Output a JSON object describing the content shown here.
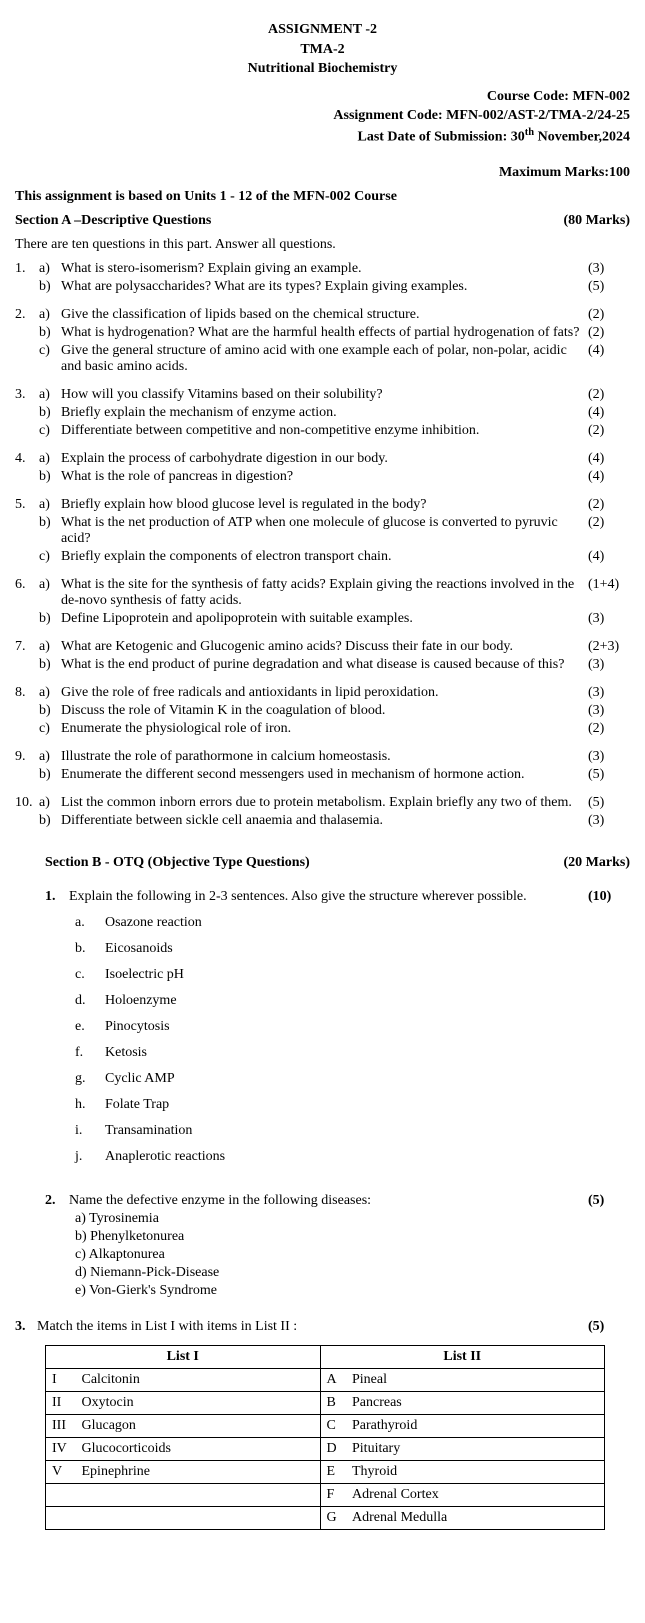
{
  "header": {
    "title1": "ASSIGNMENT -2",
    "title2": "TMA-2",
    "subject": "Nutritional Biochemistry",
    "course_code_label": "Course Code: MFN-002",
    "assignment_code_label": "Assignment Code: MFN-002/AST-2/TMA-2/24-25",
    "submission_prefix": "Last Date of Submission: 30",
    "submission_sup": "th",
    "submission_suffix": " November,2024",
    "max_marks": "Maximum Marks:100",
    "basis": "This assignment is based on Units 1 - 12 of the MFN-002 Course"
  },
  "sectionA": {
    "title": "Section A –Descriptive Questions",
    "marks": "(80 Marks)",
    "instruction": "There are ten questions in this part. Answer all questions.",
    "questions": [
      {
        "num": "1.",
        "parts": [
          {
            "sub": "a)",
            "text": "What is stero-isomerism? Explain giving an example.",
            "marks": "(3)"
          },
          {
            "sub": "b)",
            "text": "What are polysaccharides? What are its types? Explain giving examples.",
            "marks": "(5)"
          }
        ]
      },
      {
        "num": "2.",
        "parts": [
          {
            "sub": "a)",
            "text": "Give the classification of lipids based on the chemical structure.",
            "marks": "(2)"
          },
          {
            "sub": "b)",
            "text": "What is hydrogenation? What are the harmful health effects of partial hydrogenation of fats?",
            "marks": "(2)"
          },
          {
            "sub": "c)",
            "text": "Give the general structure of amino acid with one example each of polar, non-polar, acidic and basic amino acids.",
            "marks": "(4)"
          }
        ]
      },
      {
        "num": "3.",
        "parts": [
          {
            "sub": "a)",
            "text": "How will you classify Vitamins based on their solubility?",
            "marks": "(2)"
          },
          {
            "sub": "b)",
            "text": "Briefly explain the mechanism of enzyme action.",
            "marks": "(4)"
          },
          {
            "sub": "c)",
            "text": "Differentiate between competitive and non-competitive enzyme inhibition.",
            "marks": "(2)"
          }
        ]
      },
      {
        "num": "4.",
        "parts": [
          {
            "sub": "a)",
            "text": "Explain the process of carbohydrate digestion in our body.",
            "marks": "(4)"
          },
          {
            "sub": "b)",
            "text": "What is the role of pancreas in digestion?",
            "marks": "(4)"
          }
        ]
      },
      {
        "num": "5.",
        "parts": [
          {
            "sub": "a)",
            "text": "Briefly explain how blood glucose level is regulated in the body?",
            "marks": "(2)"
          },
          {
            "sub": "b)",
            "text": "What is the net production of ATP when one molecule of glucose is converted to pyruvic acid?",
            "marks": "(2)"
          },
          {
            "sub": "c)",
            "text": "Briefly explain the components of electron transport chain.",
            "marks": "(4)"
          }
        ]
      },
      {
        "num": "6.",
        "parts": [
          {
            "sub": "a)",
            "text": "What is the site for the synthesis of fatty acids? Explain giving the reactions involved in the de-novo synthesis of fatty acids.",
            "marks": "(1+4)"
          },
          {
            "sub": "b)",
            "text": "Define Lipoprotein and apolipoprotein with suitable examples.",
            "marks": "(3)"
          }
        ]
      },
      {
        "num": "7.",
        "parts": [
          {
            "sub": "a)",
            "text": "What are Ketogenic and Glucogenic amino acids? Discuss their fate in our body.",
            "marks": "(2+3)"
          },
          {
            "sub": "b)",
            "text": "What is the end product of purine degradation and what disease is caused because of this?",
            "marks": "(3)"
          }
        ]
      },
      {
        "num": "8.",
        "parts": [
          {
            "sub": "a)",
            "text": "Give the role of free radicals and antioxidants in lipid peroxidation.",
            "marks": "(3)"
          },
          {
            "sub": "b)",
            "text": "Discuss the role of Vitamin K in the coagulation of blood.",
            "marks": "(3)"
          },
          {
            "sub": "c)",
            "text": "Enumerate the physiological role of iron.",
            "marks": "(2)"
          }
        ]
      },
      {
        "num": "9.",
        "parts": [
          {
            "sub": "a)",
            "text": "Illustrate the role of parathormone in calcium homeostasis.",
            "marks": "(3)"
          },
          {
            "sub": "b)",
            "text": "Enumerate the different second messengers used in mechanism of hormone action.",
            "marks": "(5)"
          }
        ]
      },
      {
        "num": "10.",
        "parts": [
          {
            "sub": "a)",
            "text": "List the common inborn errors due to protein metabolism. Explain briefly any two of them.",
            "marks": "(5)"
          },
          {
            "sub": "b)",
            "text": "Differentiate between sickle cell anaemia and thalasemia.",
            "marks": "(3)"
          }
        ]
      }
    ]
  },
  "sectionB": {
    "title": "Section B - OTQ (Objective Type Questions)",
    "marks": "(20 Marks)",
    "q1": {
      "num": "1.",
      "text": "Explain the following in 2-3 sentences. Also give the structure wherever possible.",
      "marks": "(10)",
      "items": [
        {
          "l": "a.",
          "t": "Osazone reaction"
        },
        {
          "l": "b.",
          "t": "Eicosanoids"
        },
        {
          "l": "c.",
          "t": "Isoelectric pH"
        },
        {
          "l": "d.",
          "t": "Holoenzyme"
        },
        {
          "l": "e.",
          "t": "Pinocytosis"
        },
        {
          "l": "f.",
          "t": "Ketosis"
        },
        {
          "l": "g.",
          "t": "Cyclic AMP"
        },
        {
          "l": "h.",
          "t": "Folate Trap"
        },
        {
          "l": "i.",
          "t": "Transamination"
        },
        {
          "l": "j.",
          "t": "Anaplerotic reactions"
        }
      ]
    },
    "q2": {
      "num": "2.",
      "text": "Name the defective enzyme in the following diseases:",
      "marks": "(5)",
      "items": [
        "a) Tyrosinemia",
        "b) Phenylketonurea",
        "c) Alkaptonurea",
        "d) Niemann-Pick-Disease",
        "e) Von-Gierk's Syndrome"
      ]
    },
    "q3": {
      "num": "3.",
      "text": "Match the items in List I with items in List II :",
      "marks": "(5)",
      "h1": "List I",
      "h2": "List II",
      "list1": [
        {
          "r": "I",
          "n": "Calcitonin"
        },
        {
          "r": "II",
          "n": "Oxytocin"
        },
        {
          "r": "III",
          "n": "Glucagon"
        },
        {
          "r": "IV",
          "n": "Glucocorticoids"
        },
        {
          "r": "V",
          "n": "Epinephrine"
        },
        {
          "r": "",
          "n": ""
        },
        {
          "r": "",
          "n": ""
        }
      ],
      "list2": [
        {
          "l": "A",
          "n": "Pineal"
        },
        {
          "l": "B",
          "n": "Pancreas"
        },
        {
          "l": "C",
          "n": "Parathyroid"
        },
        {
          "l": "D",
          "n": "Pituitary"
        },
        {
          "l": "E",
          "n": "Thyroid"
        },
        {
          "l": "F",
          "n": "Adrenal Cortex"
        },
        {
          "l": "G",
          "n": "Adrenal Medulla"
        }
      ]
    }
  }
}
